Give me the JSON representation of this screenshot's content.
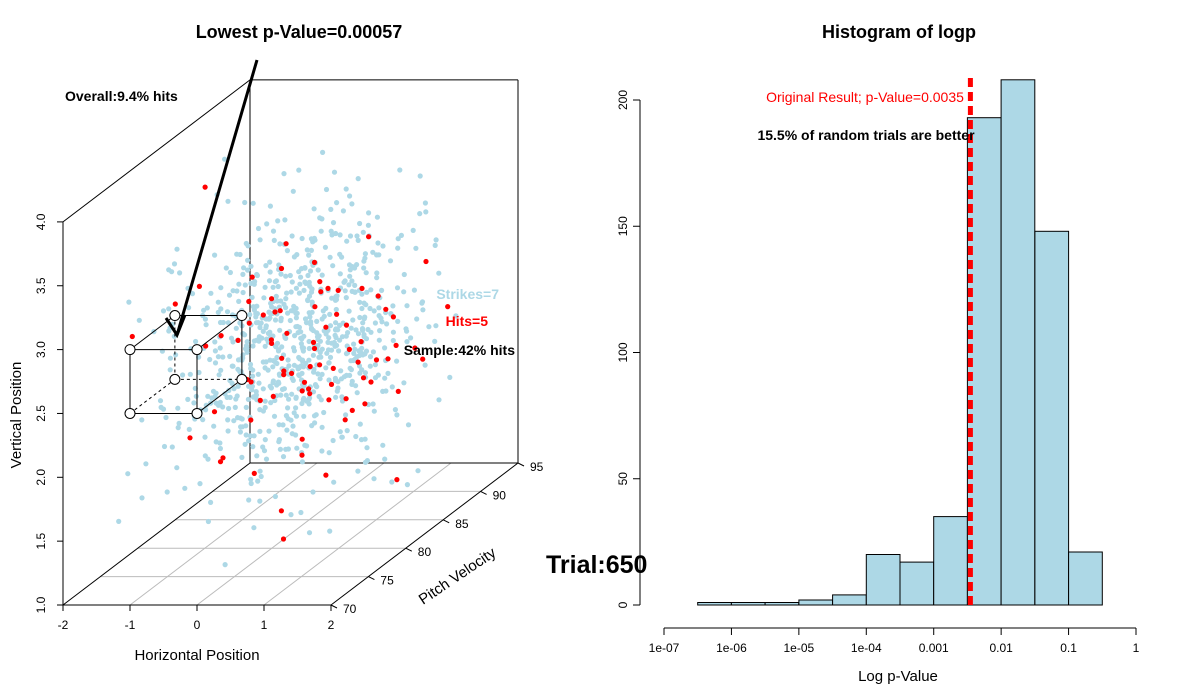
{
  "chart_data": [
    {
      "type": "scatter",
      "title": "Lowest p-Value=0.00057",
      "xlabel": "Horizontal Position",
      "ylabel": "Vertical Position",
      "zlabel": "Pitch Velocity",
      "xlim": [
        -2,
        2
      ],
      "ylim": [
        1.0,
        4.0
      ],
      "zlim": [
        70,
        95
      ],
      "x_ticks": [
        "-2",
        "-1",
        "0",
        "1",
        "2"
      ],
      "y_ticks": [
        "1.0",
        "1.5",
        "2.0",
        "2.5",
        "3.0",
        "3.5",
        "4.0"
      ],
      "z_ticks": [
        "70",
        "75",
        "80",
        "85",
        "90",
        "95"
      ],
      "grid": "floor",
      "series": [
        {
          "name": "Strikes",
          "color": "#add8e6"
        },
        {
          "name": "Hits",
          "color": "#ff0000"
        }
      ],
      "labels": {
        "overall": "Overall:9.4% hits",
        "strikes": "Strikes=7",
        "hits": "Hits=5",
        "sample": "Sample:42% hits"
      },
      "annotations": [
        "arrow from title to lowest-p sample box"
      ]
    },
    {
      "type": "bar",
      "title": "Histogram of logp",
      "xlabel": "Log p-Value",
      "ylabel": "",
      "x_ticks": [
        "1e-07",
        "1e-06",
        "1e-05",
        "1e-04",
        "0.001",
        "0.01",
        "0.1",
        "1"
      ],
      "y_ticks": [
        "0",
        "50",
        "100",
        "150",
        "200"
      ],
      "ylim": [
        0,
        210
      ],
      "log_x": true,
      "bins": [
        {
          "from": -6.5,
          "to": -6.0,
          "count": 1
        },
        {
          "from": -6.0,
          "to": -5.5,
          "count": 1
        },
        {
          "from": -5.5,
          "to": -5.0,
          "count": 1
        },
        {
          "from": -5.0,
          "to": -4.5,
          "count": 2
        },
        {
          "from": -4.5,
          "to": -4.0,
          "count": 4
        },
        {
          "from": -4.0,
          "to": -3.5,
          "count": 20
        },
        {
          "from": -3.5,
          "to": -3.0,
          "count": 17
        },
        {
          "from": -3.0,
          "to": -2.5,
          "count": 35
        },
        {
          "from": -2.5,
          "to": -2.0,
          "count": 193
        },
        {
          "from": -2.0,
          "to": -1.5,
          "count": 208
        },
        {
          "from": -1.5,
          "to": -1.0,
          "count": 148
        },
        {
          "from": -1.0,
          "to": -0.5,
          "count": 21
        }
      ],
      "bar_color": "#add8e6",
      "reference_line": {
        "p_value": 0.0035,
        "color": "#ff0000",
        "style": "dashed"
      },
      "annotations": {
        "original": "Original Result; p-Value=0.0035",
        "better": "15.5% of random trials are better"
      }
    }
  ],
  "trial_label": "Trial:650"
}
